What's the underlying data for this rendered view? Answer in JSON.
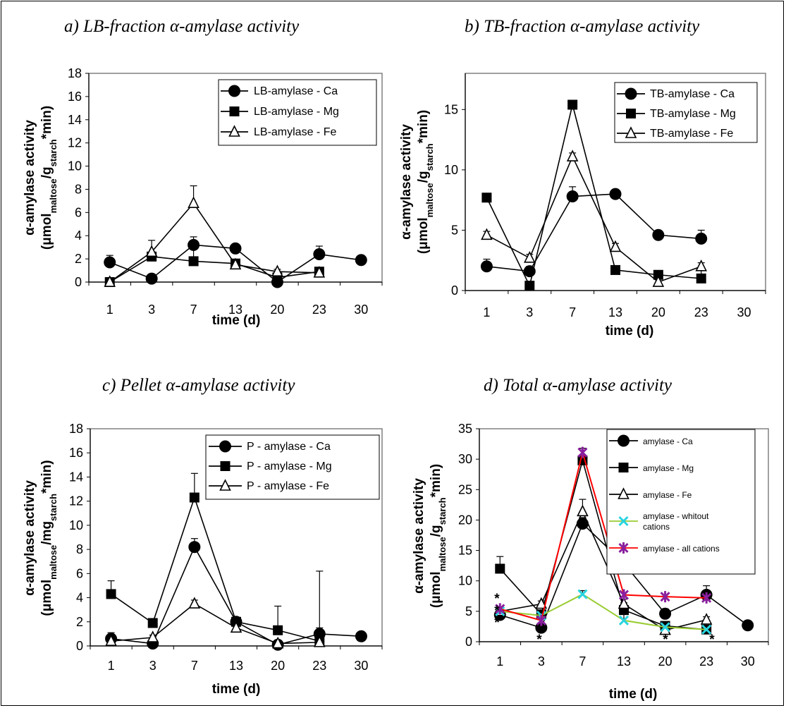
{
  "chart_data": [
    {
      "type": "line",
      "title": "a) LB-fraction α-amylase activity",
      "xlabel": "time (d)",
      "ylabel_main": "α-amylase activity",
      "ylabel_units": {
        "a": "(μmol",
        "b": "maltose",
        "c": "/g",
        "d": "starch",
        "e": "*min)"
      },
      "categories": [
        "1",
        "3",
        "7",
        "13",
        "20",
        "23",
        "30"
      ],
      "ylim": [
        0,
        18
      ],
      "yticks": [
        "0",
        "2",
        "4",
        "6",
        "8",
        "10",
        "12",
        "14",
        "16",
        "18"
      ],
      "legend_position": "top-right",
      "grid": false,
      "series": [
        {
          "name": "LB-amylase - Ca",
          "marker": "circle",
          "values": [
            1.7,
            0.3,
            3.2,
            2.9,
            0.0,
            2.4,
            1.9
          ],
          "errors": [
            0.6,
            0.3,
            0.7,
            0.3,
            0.2,
            0.7,
            0.2
          ]
        },
        {
          "name": "LB-amylase - Mg",
          "marker": "square",
          "values": [
            0.0,
            2.2,
            1.8,
            1.6,
            0.4,
            0.9,
            null
          ],
          "errors": [
            0.2,
            0.3,
            1.3,
            0.3,
            0.2,
            0.3,
            0
          ]
        },
        {
          "name": "LB-amylase - Fe",
          "marker": "triangle",
          "values": [
            0.0,
            2.6,
            6.8,
            1.5,
            0.9,
            0.8,
            null
          ],
          "errors": [
            0.2,
            1.0,
            1.5,
            0.3,
            0.2,
            0.2,
            0
          ]
        }
      ]
    },
    {
      "type": "line",
      "title": "b) TB-fraction α-amylase activity",
      "xlabel": "time (d)",
      "ylabel_main": "α-amylase activity",
      "ylabel_units": {
        "a": "(μmol",
        "b": "maltose",
        "c": "/g",
        "d": "starch",
        "e": "*min)"
      },
      "categories": [
        "1",
        "3",
        "7",
        "13",
        "20",
        "23",
        "30"
      ],
      "ylim": [
        0,
        18
      ],
      "yticks": [
        "0",
        "5",
        "10",
        "15"
      ],
      "legend_position": "top-right",
      "grid": false,
      "series": [
        {
          "name": "TB-amylase - Ca",
          "marker": "circle",
          "values": [
            2.0,
            1.6,
            7.8,
            8.0,
            4.6,
            4.3,
            null
          ],
          "errors": [
            0.6,
            0.4,
            0.8,
            0.3,
            0.3,
            0.7,
            0
          ]
        },
        {
          "name": "TB-amylase - Mg",
          "marker": "square",
          "values": [
            7.7,
            0.4,
            15.4,
            1.7,
            1.3,
            1.0,
            null
          ],
          "errors": [
            0.3,
            0.3,
            0.3,
            0.3,
            0.3,
            0.8,
            0
          ]
        },
        {
          "name": "TB-amylase - Fe",
          "marker": "triangle",
          "values": [
            4.6,
            2.7,
            11.1,
            3.6,
            0.7,
            2.0,
            null
          ],
          "errors": [
            0.3,
            0.3,
            0.3,
            0.3,
            0.3,
            0.3,
            0
          ]
        }
      ]
    },
    {
      "type": "line",
      "title": "c) Pellet α-amylase activity",
      "xlabel": "time (d)",
      "ylabel_main": "α-amylase activity",
      "ylabel_units": {
        "a": "(μmol",
        "b": "maltose",
        "c": "/mg",
        "d": "starch",
        "e": "*min)"
      },
      "categories": [
        "1",
        "3",
        "7",
        "13",
        "20",
        "23",
        "30"
      ],
      "ylim": [
        0,
        18
      ],
      "yticks": [
        "0",
        "2",
        "4",
        "6",
        "8",
        "10",
        "12",
        "14",
        "16",
        "18"
      ],
      "legend_position": "top-right",
      "grid": false,
      "series": [
        {
          "name": "P - amylase - Ca",
          "marker": "circle",
          "values": [
            0.6,
            0.2,
            8.2,
            2.0,
            0.1,
            1.0,
            0.8
          ],
          "errors": [
            0.5,
            0.2,
            0.7,
            0.3,
            0.2,
            0.5,
            0.2
          ]
        },
        {
          "name": "P - amylase - Mg",
          "marker": "square",
          "values": [
            4.3,
            1.9,
            12.3,
            2.0,
            1.3,
            0.4,
            null
          ],
          "errors": [
            1.1,
            0.2,
            2.0,
            0.3,
            2.0,
            5.8,
            0
          ]
        },
        {
          "name": "P - amylase - Fe",
          "marker": "triangle",
          "values": [
            0.4,
            0.7,
            3.5,
            1.5,
            0.2,
            0.3,
            null
          ],
          "errors": [
            0.2,
            0.2,
            0.3,
            0.2,
            0.2,
            0.2,
            0
          ]
        }
      ]
    },
    {
      "type": "line",
      "title": "d) Total α-amylase activity",
      "xlabel": "time (d)",
      "ylabel_main": "α-amylase activity",
      "ylabel_units": {
        "a": "(μmol",
        "b": "maltose",
        "c": "/g",
        "d": "starch",
        "e": "*min)"
      },
      "categories": [
        "1",
        "3",
        "7",
        "13",
        "20",
        "23",
        "30"
      ],
      "ylim": [
        0,
        35
      ],
      "yticks": [
        "0",
        "5",
        "10",
        "15",
        "20",
        "25",
        "30",
        "35"
      ],
      "legend_position": "top-right",
      "grid": false,
      "annotations": [
        "*",
        "*",
        "*",
        "*",
        "*",
        "*"
      ],
      "series": [
        {
          "name": "amylase - Ca",
          "marker": "circle",
          "color": "#000000",
          "values": [
            4.4,
            2.3,
            19.4,
            12.9,
            4.6,
            7.7,
            2.7
          ],
          "errors": [
            0.5,
            0.5,
            1.0,
            0.8,
            0.8,
            1.5,
            0.4
          ]
        },
        {
          "name": "amylase - Mg",
          "marker": "square",
          "color": "#000000",
          "values": [
            12.0,
            4.5,
            29.8,
            5.2,
            2.6,
            2.0,
            null
          ],
          "errors": [
            2.0,
            0.5,
            2.0,
            1.2,
            0.5,
            0.5,
            0
          ]
        },
        {
          "name": "amylase - Fe",
          "marker": "triangle",
          "color": "#000000",
          "values": [
            5.0,
            6.2,
            21.4,
            6.2,
            1.9,
            3.6,
            null
          ],
          "errors": [
            0.5,
            0.5,
            2.0,
            0.8,
            0.5,
            0.5,
            0
          ]
        },
        {
          "name_a": "amylase - whitout",
          "name_b": "cations",
          "marker": "x",
          "color": "#99cc33",
          "values": [
            5.0,
            4.3,
            7.8,
            3.5,
            2.4,
            2.0,
            null
          ],
          "errors": [
            0,
            0,
            0.6,
            1.5,
            0,
            0,
            0
          ]
        },
        {
          "name": "amylase - all cations",
          "marker": "star",
          "color": "#ff0000",
          "values": [
            5.4,
            3.5,
            31.1,
            7.7,
            7.4,
            7.2,
            null
          ],
          "errors": [
            0,
            0,
            0,
            0,
            0,
            0,
            0
          ]
        }
      ]
    }
  ]
}
